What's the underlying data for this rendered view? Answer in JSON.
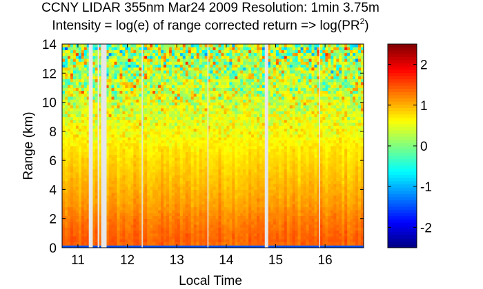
{
  "chart_data": {
    "type": "heatmap",
    "title": "CCNY LIDAR 355nm Mar24 2009 Resolution: 1min 3.75m",
    "subtitle_prefix": "Intensity = log(e) of range corrected return => log(PR",
    "subtitle_superscript": "2",
    "subtitle_suffix": ")",
    "xlabel": "Local Time",
    "ylabel": "Range (km)",
    "xlim": [
      10.68,
      16.78
    ],
    "ylim": [
      0,
      14
    ],
    "xticks": [
      11,
      12,
      13,
      14,
      15,
      16
    ],
    "yticks": [
      0,
      2,
      4,
      6,
      8,
      10,
      12,
      14
    ],
    "colorbar": {
      "colormap": "jet",
      "clim": [
        -2.5,
        2.5
      ],
      "ticks": [
        -2,
        -1,
        0,
        1,
        2
      ]
    },
    "data_gaps_local_time": [
      [
        11.22,
        11.3
      ],
      [
        11.4,
        11.43
      ],
      [
        11.47,
        11.58
      ],
      [
        12.29,
        12.31
      ],
      [
        13.62,
        13.64
      ],
      [
        14.78,
        14.85
      ],
      [
        15.88,
        15.9
      ]
    ],
    "intensity_profile": {
      "range_km": [
        0,
        0.05,
        0.2,
        0.5,
        1,
        2,
        3,
        4,
        5,
        6,
        7,
        8,
        9,
        10,
        11,
        12,
        13,
        14
      ],
      "log_pr2": [
        -1.5,
        1.25,
        1.35,
        1.4,
        1.35,
        1.25,
        1.1,
        1.0,
        0.9,
        0.8,
        0.7,
        0.6,
        0.5,
        0.45,
        0.35,
        0.3,
        0.25,
        0.2
      ]
    }
  }
}
